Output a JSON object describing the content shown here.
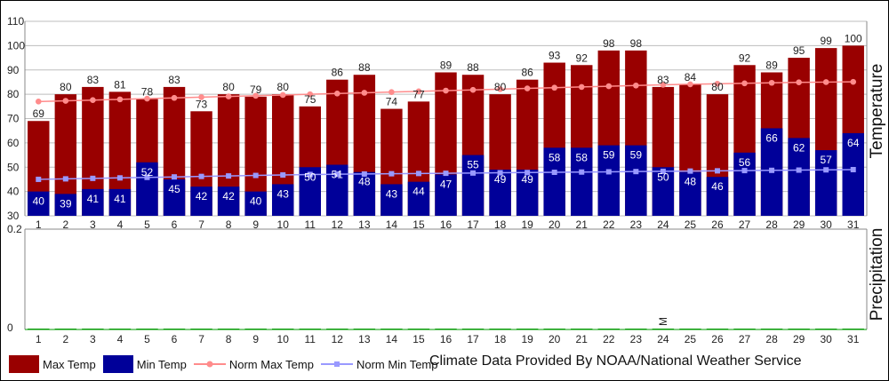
{
  "chart_data": {
    "type": "bar",
    "colors": {
      "max": "#990000",
      "min": "#000099",
      "norm_max": "#ff8c8c",
      "norm_min": "#9999ff",
      "precip": "#009900"
    },
    "temperature": {
      "ylabel": "Temperature",
      "ylim": [
        30,
        110
      ],
      "yticks": [
        "30",
        "40",
        "50",
        "60",
        "70",
        "80",
        "90",
        "100",
        "110"
      ],
      "categories": [
        "1",
        "2",
        "3",
        "4",
        "5",
        "6",
        "7",
        "8",
        "9",
        "10",
        "11",
        "12",
        "13",
        "14",
        "15",
        "16",
        "17",
        "18",
        "19",
        "20",
        "21",
        "22",
        "23",
        "24",
        "25",
        "26",
        "27",
        "28",
        "29",
        "30",
        "31"
      ],
      "series": [
        {
          "name": "Max Temp",
          "values": [
            69,
            80,
            83,
            81,
            78,
            83,
            73,
            80,
            79,
            80,
            75,
            86,
            88,
            74,
            77,
            89,
            88,
            80,
            86,
            93,
            92,
            98,
            98,
            83,
            84,
            80,
            92,
            89,
            95,
            99,
            100
          ]
        },
        {
          "name": "Min Temp",
          "values": [
            40,
            39,
            41,
            41,
            52,
            45,
            42,
            42,
            40,
            43,
            50,
            51,
            48,
            43,
            44,
            47,
            55,
            49,
            49,
            58,
            58,
            59,
            59,
            50,
            48,
            46,
            56,
            66,
            62,
            57,
            64
          ]
        },
        {
          "name": "Norm Max Temp",
          "values": [
            77,
            77.3,
            77.6,
            77.9,
            78.2,
            78.5,
            78.8,
            79.1,
            79.4,
            79.7,
            80,
            80.3,
            80.6,
            80.9,
            81.2,
            81.5,
            81.8,
            82.1,
            82.4,
            82.7,
            83,
            83.3,
            83.6,
            83.9,
            84.1,
            84.3,
            84.5,
            84.7,
            84.9,
            85,
            85.1
          ]
        },
        {
          "name": "Norm Min Temp",
          "values": [
            45,
            45.2,
            45.4,
            45.6,
            45.8,
            46,
            46.2,
            46.4,
            46.6,
            46.8,
            47,
            47.1,
            47.2,
            47.3,
            47.4,
            47.5,
            47.6,
            47.7,
            47.8,
            47.9,
            48,
            48.1,
            48.2,
            48.3,
            48.4,
            48.5,
            48.6,
            48.7,
            48.8,
            48.9,
            49
          ]
        }
      ]
    },
    "precipitation": {
      "ylabel": "Precipitation",
      "ylim": [
        0,
        0.2
      ],
      "yticks": [
        "0",
        "0.2"
      ],
      "values": [
        0,
        0,
        0,
        0,
        0,
        0,
        0,
        0,
        0,
        0,
        0,
        0,
        0,
        0,
        0,
        0,
        0,
        0,
        0,
        0,
        0,
        0,
        0,
        0,
        0,
        0,
        0,
        0,
        0,
        0,
        0
      ],
      "markers": [
        {
          "day": "24",
          "text": "M"
        }
      ]
    },
    "legend": [
      "Max Temp",
      "Min Temp",
      "Norm Max Temp",
      "Norm Min Temp"
    ]
  },
  "credit": "Climate Data Provided By NOAA/National Weather Service"
}
